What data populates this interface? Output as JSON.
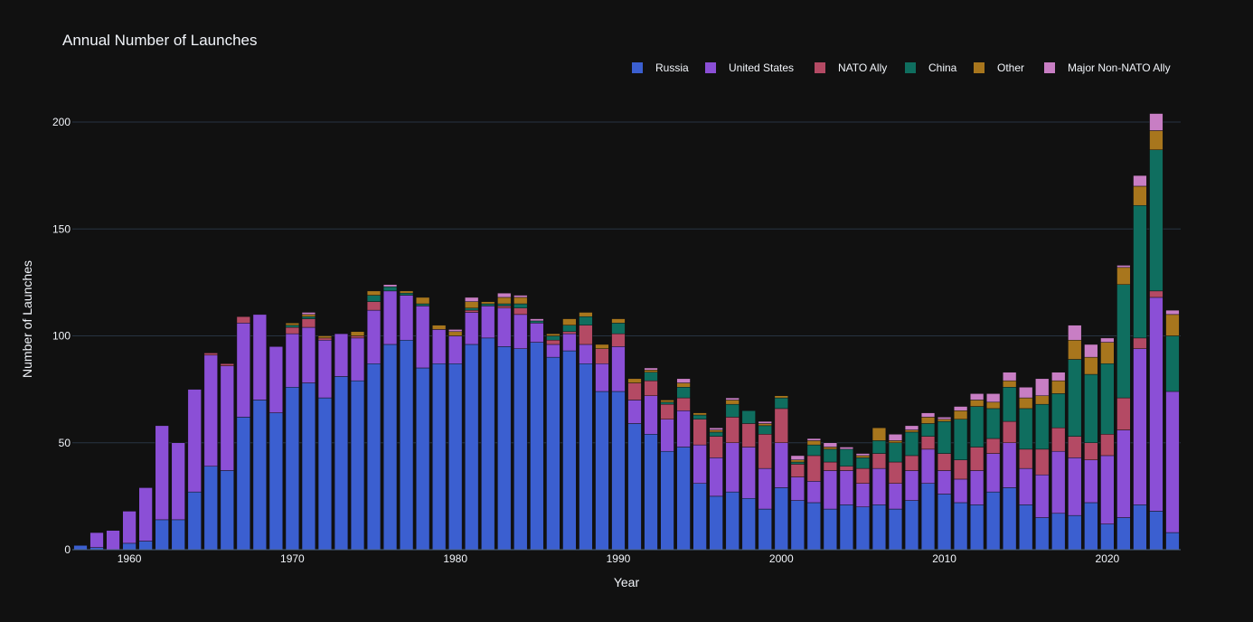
{
  "chart_data": {
    "type": "bar",
    "stacked": true,
    "title": "Annual Number of Launches",
    "xlabel": "Year",
    "ylabel": "Number of Launches",
    "x_ticks": [
      1960,
      1970,
      1980,
      1990,
      2000,
      2010,
      2020
    ],
    "y_ticks": [
      0,
      50,
      100,
      150,
      200
    ],
    "xlim": [
      1956.5,
      2024.5
    ],
    "ylim": [
      0,
      215
    ],
    "grid": true,
    "legend_position": "top-right",
    "background": "#111111",
    "x": [
      1957,
      1958,
      1959,
      1960,
      1961,
      1962,
      1963,
      1964,
      1965,
      1966,
      1967,
      1968,
      1969,
      1970,
      1971,
      1972,
      1973,
      1974,
      1975,
      1976,
      1977,
      1978,
      1979,
      1980,
      1981,
      1982,
      1983,
      1984,
      1985,
      1986,
      1987,
      1988,
      1989,
      1990,
      1991,
      1992,
      1993,
      1994,
      1995,
      1996,
      1997,
      1998,
      1999,
      2000,
      2001,
      2002,
      2003,
      2004,
      2005,
      2006,
      2007,
      2008,
      2009,
      2010,
      2011,
      2012,
      2013,
      2014,
      2015,
      2016,
      2017,
      2018,
      2019,
      2020,
      2021,
      2022,
      2023,
      2024
    ],
    "series": [
      {
        "name": "Russia",
        "color": "#3b5fd0",
        "values": [
          2,
          1,
          0,
          3,
          4,
          14,
          14,
          27,
          39,
          37,
          62,
          70,
          64,
          76,
          78,
          71,
          81,
          79,
          87,
          96,
          98,
          85,
          87,
          87,
          96,
          99,
          95,
          94,
          97,
          90,
          93,
          87,
          74,
          74,
          59,
          54,
          46,
          48,
          31,
          25,
          27,
          24,
          19,
          29,
          23,
          22,
          19,
          21,
          20,
          21,
          19,
          23,
          31,
          26,
          22,
          21,
          27,
          29,
          21,
          15,
          17,
          16,
          22,
          12,
          15,
          21,
          18,
          8
        ]
      },
      {
        "name": "United States",
        "color": "#8b4fd6",
        "values": [
          0,
          7,
          9,
          15,
          25,
          44,
          36,
          48,
          52,
          49,
          44,
          40,
          31,
          25,
          26,
          27,
          20,
          20,
          25,
          25,
          21,
          29,
          16,
          13,
          15,
          15,
          18,
          16,
          9,
          6,
          8,
          9,
          13,
          21,
          11,
          18,
          15,
          17,
          18,
          18,
          23,
          24,
          19,
          21,
          11,
          10,
          18,
          16,
          11,
          17,
          12,
          14,
          16,
          11,
          11,
          16,
          18,
          21,
          17,
          20,
          29,
          27,
          20,
          32,
          41,
          73,
          100,
          66
        ]
      },
      {
        "name": "NATO Ally",
        "color": "#b44a64",
        "values": [
          0,
          0,
          0,
          0,
          0,
          0,
          0,
          0,
          1,
          1,
          3,
          0,
          0,
          3,
          4,
          1,
          0,
          1,
          4,
          0,
          0,
          0,
          0,
          0,
          1,
          0,
          1,
          3,
          0,
          2,
          1,
          9,
          7,
          6,
          8,
          7,
          7,
          6,
          12,
          10,
          12,
          11,
          16,
          16,
          6,
          12,
          4,
          2,
          7,
          7,
          10,
          7,
          6,
          8,
          9,
          11,
          7,
          10,
          9,
          12,
          11,
          10,
          8,
          10,
          15,
          5,
          3,
          0
        ]
      },
      {
        "name": "China",
        "color": "#0f6e5f",
        "values": [
          0,
          0,
          0,
          0,
          0,
          0,
          0,
          0,
          0,
          0,
          0,
          0,
          0,
          1,
          1,
          0,
          0,
          0,
          3,
          2,
          1,
          1,
          0,
          0,
          1,
          1,
          1,
          2,
          1,
          2,
          3,
          4,
          0,
          5,
          0,
          4,
          1,
          5,
          2,
          2,
          6,
          6,
          4,
          5,
          1,
          5,
          6,
          8,
          5,
          6,
          9,
          11,
          6,
          15,
          19,
          19,
          14,
          16,
          19,
          21,
          16,
          36,
          32,
          33,
          53,
          62,
          66,
          26
        ]
      },
      {
        "name": "Other",
        "color": "#a8761d",
        "values": [
          0,
          0,
          0,
          0,
          0,
          0,
          0,
          0,
          0,
          0,
          0,
          0,
          0,
          1,
          1,
          1,
          0,
          2,
          2,
          0,
          1,
          3,
          2,
          2,
          3,
          1,
          3,
          3,
          0,
          1,
          3,
          2,
          2,
          2,
          2,
          1,
          1,
          2,
          1,
          1,
          2,
          0,
          1,
          1,
          1,
          2,
          1,
          0,
          1,
          6,
          1,
          1,
          3,
          1,
          4,
          3,
          3,
          3,
          5,
          4,
          6,
          9,
          8,
          10,
          8,
          9,
          9,
          10
        ]
      },
      {
        "name": "Major Non-NATO Ally",
        "color": "#c87ec4",
        "values": [
          0,
          0,
          0,
          0,
          0,
          0,
          0,
          0,
          0,
          0,
          0,
          0,
          0,
          0,
          1,
          0,
          0,
          0,
          0,
          1,
          0,
          0,
          0,
          1,
          2,
          0,
          2,
          1,
          1,
          0,
          0,
          0,
          0,
          0,
          0,
          1,
          0,
          2,
          0,
          1,
          1,
          0,
          1,
          0,
          2,
          1,
          2,
          1,
          1,
          0,
          3,
          2,
          2,
          1,
          2,
          3,
          4,
          4,
          5,
          8,
          4,
          7,
          6,
          2,
          1,
          5,
          8,
          2
        ]
      }
    ]
  }
}
